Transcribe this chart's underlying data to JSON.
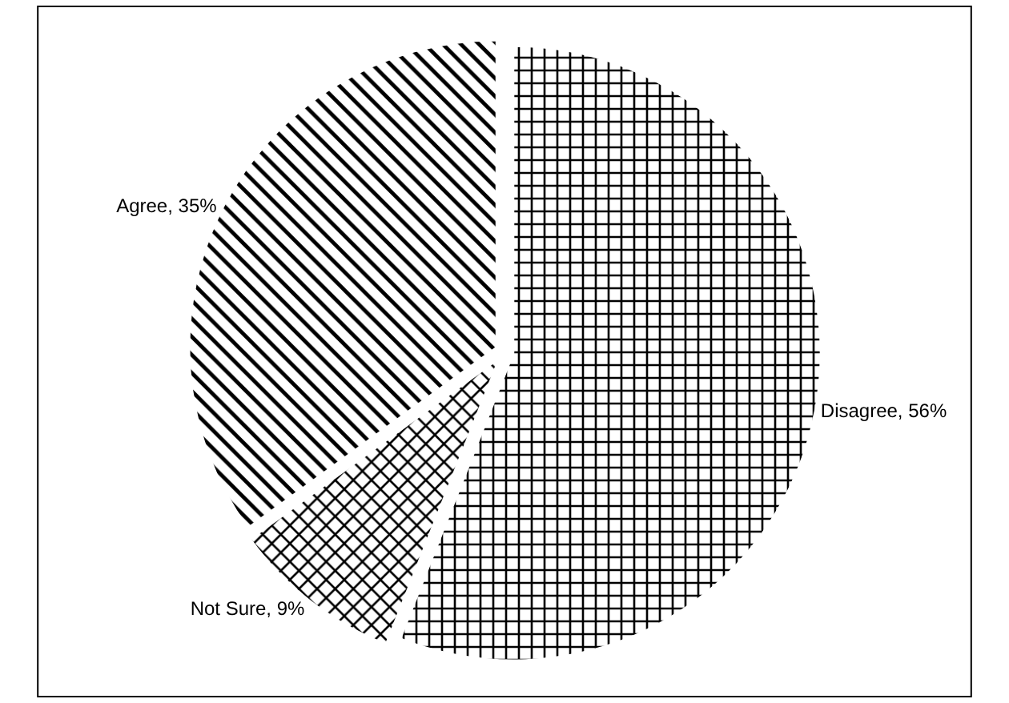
{
  "chart_data": {
    "type": "pie",
    "categories": [
      "Disagree",
      "Not Sure",
      "Agree"
    ],
    "values": [
      56,
      9,
      35
    ],
    "colors": [
      "#ffffff",
      "#ffffff",
      "#ffffff"
    ],
    "value_labels": [
      "56%",
      "9%",
      "35%"
    ],
    "legend": false
  }
}
